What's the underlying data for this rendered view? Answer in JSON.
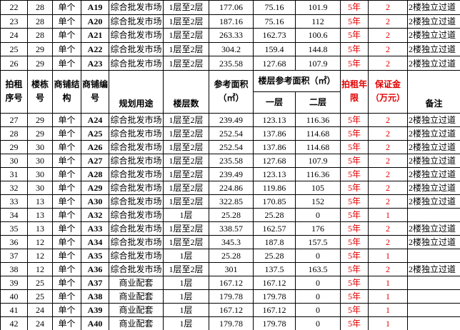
{
  "table": {
    "columns": [
      "拍租序号",
      "楼栋号",
      "商铺结构",
      "商铺编号",
      "规划用途",
      "楼层数",
      "参考面积\n（㎡）",
      "拍租年限",
      "保证金\n（万元）",
      "备注"
    ],
    "group_header": "楼层参考面积（㎡）",
    "sub_columns": [
      "一层",
      "二层"
    ],
    "rows_before": [
      [
        22,
        28,
        "单个",
        "A19",
        "综合批发市场",
        "1层至2层",
        177.06,
        75.16,
        101.9,
        "5年",
        2,
        "2楼独立过道"
      ],
      [
        23,
        28,
        "单个",
        "A20",
        "综合批发市场",
        "1层至2层",
        187.16,
        75.16,
        112,
        "5年",
        2,
        "2楼独立过道"
      ],
      [
        24,
        28,
        "单个",
        "A21",
        "综合批发市场",
        "1层至2层",
        263.33,
        162.73,
        100.6,
        "5年",
        2,
        "2楼独立过道"
      ],
      [
        25,
        29,
        "单个",
        "A22",
        "综合批发市场",
        "1层至2层",
        304.2,
        159.4,
        144.8,
        "5年",
        2,
        "2楼独立过道"
      ],
      [
        26,
        29,
        "单个",
        "A23",
        "综合批发市场",
        "1层至2层",
        235.58,
        127.68,
        107.9,
        "5年",
        2,
        "2楼独立过道"
      ]
    ],
    "rows": [
      [
        27,
        29,
        "单个",
        "A24",
        "综合批发市场",
        "1层至2层",
        239.49,
        123.13,
        116.36,
        "5年",
        2,
        "2楼独立过道"
      ],
      [
        28,
        29,
        "单个",
        "A25",
        "综合批发市场",
        "1层至2层",
        252.54,
        137.86,
        114.68,
        "5年",
        2,
        "2楼独立过道"
      ],
      [
        29,
        30,
        "单个",
        "A26",
        "综合批发市场",
        "1层至2层",
        252.54,
        137.86,
        114.68,
        "5年",
        2,
        "2楼独立过道"
      ],
      [
        30,
        30,
        "单个",
        "A27",
        "综合批发市场",
        "1层至2层",
        235.58,
        127.68,
        107.9,
        "5年",
        2,
        "2楼独立过道"
      ],
      [
        31,
        30,
        "单个",
        "A28",
        "综合批发市场",
        "1层至2层",
        239.49,
        123.13,
        116.36,
        "5年",
        2,
        "2楼独立过道"
      ],
      [
        32,
        30,
        "单个",
        "A29",
        "综合批发市场",
        "1层至2层",
        224.86,
        119.86,
        105,
        "5年",
        2,
        "2楼独立过道"
      ],
      [
        33,
        13,
        "单个",
        "A30",
        "综合批发市场",
        "1层至2层",
        322.85,
        170.85,
        152,
        "5年",
        2,
        "2楼独立过道"
      ],
      [
        34,
        13,
        "单个",
        "A32",
        "综合批发市场",
        "1层",
        25.28,
        25.28,
        0,
        "5年",
        1,
        null
      ],
      [
        35,
        13,
        "单个",
        "A33",
        "综合批发市场",
        "1层至2层",
        338.57,
        162.57,
        176,
        "5年",
        2,
        "2楼独立过道"
      ],
      [
        36,
        12,
        "单个",
        "A34",
        "综合批发市场",
        "1层至2层",
        345.3,
        187.8,
        157.5,
        "5年",
        2,
        "2楼独立过道"
      ],
      [
        37,
        12,
        "单个",
        "A35",
        "综合批发市场",
        "1层",
        25.28,
        25.28,
        0,
        "5年",
        1,
        null
      ],
      [
        38,
        12,
        "单个",
        "A36",
        "综合批发市场",
        "1层至2层",
        301,
        137.5,
        163.5,
        "5年",
        2,
        "2楼独立过道"
      ],
      [
        39,
        25,
        "单个",
        "A37",
        "商业配套",
        "1层",
        167.12,
        167.12,
        0,
        "5年",
        1,
        null
      ],
      [
        40,
        25,
        "单个",
        "A38",
        "商业配套",
        "1层",
        179.78,
        179.78,
        0,
        "5年",
        1,
        null
      ],
      [
        41,
        24,
        "单个",
        "A39",
        "商业配套",
        "1层",
        167.12,
        167.12,
        0,
        "5年",
        1,
        null
      ],
      [
        42,
        24,
        "单个",
        "A40",
        "商业配套",
        "1层",
        179.78,
        179.78,
        0,
        "5年",
        1,
        null
      ]
    ]
  }
}
